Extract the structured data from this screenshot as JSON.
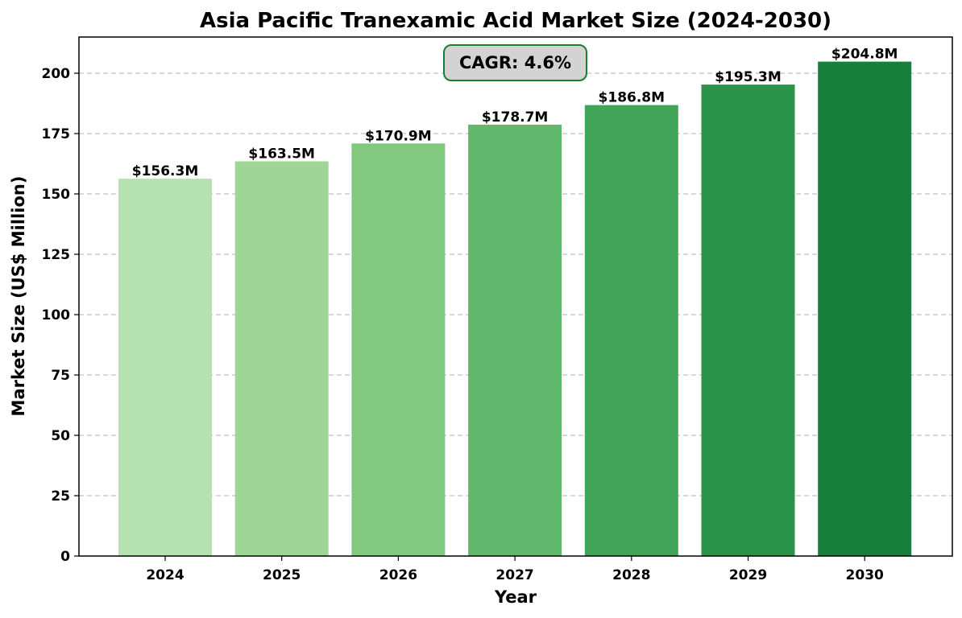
{
  "chart_data": {
    "type": "bar",
    "title": "Asia Pacific Tranexamic Acid Market Size (2024-2030)",
    "xlabel": "Year",
    "ylabel": "Market Size (US$ Million)",
    "categories": [
      "2024",
      "2025",
      "2026",
      "2027",
      "2028",
      "2029",
      "2030"
    ],
    "values": [
      156.3,
      163.5,
      170.9,
      178.7,
      186.8,
      195.3,
      204.8
    ],
    "data_labels": [
      "$156.3M",
      "$163.5M",
      "$170.9M",
      "$178.7M",
      "$186.8M",
      "$195.3M",
      "$204.8M"
    ],
    "bar_colors": [
      "#b6e2b1",
      "#9fd595",
      "#81c97f",
      "#5fb86b",
      "#40a459",
      "#2b924a",
      "#177f3b"
    ],
    "ylim": [
      0,
      215
    ],
    "yticks": [
      0,
      25,
      50,
      75,
      100,
      125,
      150,
      175,
      200
    ],
    "grid": true,
    "grid_axis": "y",
    "annotation": "CAGR: 4.6%",
    "annotation_border_color": "#1a7f2e"
  }
}
